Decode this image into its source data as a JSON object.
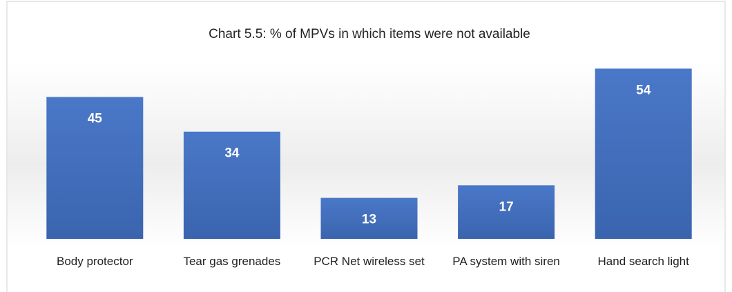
{
  "chart_data": {
    "type": "bar",
    "title": "Chart 5.5: % of MPVs in which items were not available",
    "categories": [
      "Body protector",
      "Tear gas grenades",
      "PCR Net wireless set",
      "PA system with siren",
      "Hand search light"
    ],
    "values": [
      45,
      34,
      13,
      17,
      54
    ],
    "color": "#4472c4",
    "ylim": [
      0,
      60
    ]
  }
}
